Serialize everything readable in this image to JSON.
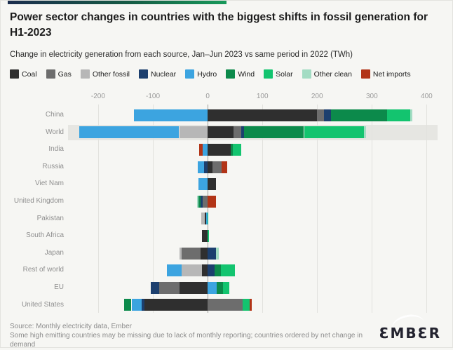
{
  "header": {
    "title": "Power sector changes in countries with the biggest shifts in fossil generation for H1-2023",
    "subtitle": "Change in electricity generation from each source, Jan–Jun 2023 vs same period in 2022 (TWh)"
  },
  "legend": {
    "items": [
      {
        "key": "coal",
        "label": "Coal",
        "color": "#2f2f2f"
      },
      {
        "key": "gas",
        "label": "Gas",
        "color": "#6d6d6d"
      },
      {
        "key": "other_fossil",
        "label": "Other fossil",
        "color": "#b7b7b7"
      },
      {
        "key": "nuclear",
        "label": "Nuclear",
        "color": "#1c3f6e"
      },
      {
        "key": "hydro",
        "label": "Hydro",
        "color": "#3ca4e0"
      },
      {
        "key": "wind",
        "label": "Wind",
        "color": "#0c8a4b"
      },
      {
        "key": "solar",
        "label": "Solar",
        "color": "#13c46f"
      },
      {
        "key": "other_clean",
        "label": "Other clean",
        "color": "#a3dcc3"
      },
      {
        "key": "net_imports",
        "label": "Net imports",
        "color": "#b23417"
      }
    ]
  },
  "chart_data": {
    "type": "bar",
    "orientation": "horizontal",
    "stacked": true,
    "diverging": true,
    "unit": "TWh",
    "title": "Power sector changes in countries with the biggest shifts in fossil generation for H1-2023",
    "axis": {
      "min": -255,
      "max": 420,
      "ticks": [
        -200,
        -100,
        0,
        100,
        200,
        300,
        400
      ],
      "position": "top",
      "grid": true
    },
    "rows": [
      {
        "label": "China",
        "highlight": false,
        "segments": [
          [
            "hydro",
            -135
          ],
          [
            "coal",
            200
          ],
          [
            "gas",
            12
          ],
          [
            "nuclear",
            13
          ],
          [
            "wind",
            103
          ],
          [
            "solar",
            42
          ],
          [
            "other_clean",
            4
          ]
        ]
      },
      {
        "label": "World",
        "highlight": true,
        "segments": [
          [
            "other_fossil",
            -52
          ],
          [
            "hydro",
            -183
          ],
          [
            "coal",
            47
          ],
          [
            "gas",
            14
          ],
          [
            "nuclear",
            6
          ],
          [
            "wind",
            109
          ],
          [
            "solar",
            109
          ],
          [
            "other_clean",
            5
          ]
        ]
      },
      {
        "label": "India",
        "highlight": false,
        "segments": [
          [
            "hydro",
            -9
          ],
          [
            "net_imports",
            -6
          ],
          [
            "coal",
            42
          ],
          [
            "wind",
            4
          ],
          [
            "solar",
            15
          ]
        ]
      },
      {
        "label": "Russia",
        "highlight": false,
        "segments": [
          [
            "nuclear",
            -6
          ],
          [
            "hydro",
            -12
          ],
          [
            "coal",
            9
          ],
          [
            "gas",
            17
          ],
          [
            "net_imports",
            10
          ]
        ]
      },
      {
        "label": "Viet Nam",
        "highlight": false,
        "segments": [
          [
            "hydro",
            -17
          ],
          [
            "coal",
            15
          ]
        ]
      },
      {
        "label": "United Kingdom",
        "highlight": false,
        "segments": [
          [
            "gas",
            -9
          ],
          [
            "nuclear",
            -4
          ],
          [
            "wind",
            -4
          ],
          [
            "other_clean",
            -2
          ],
          [
            "net_imports",
            15
          ]
        ]
      },
      {
        "label": "Pakistan",
        "highlight": false,
        "segments": [
          [
            "hydro",
            -3
          ],
          [
            "coal",
            -2
          ],
          [
            "other_fossil",
            -7
          ],
          [
            "solar",
            1
          ]
        ]
      },
      {
        "label": "South Africa",
        "highlight": false,
        "segments": [
          [
            "coal",
            -10
          ],
          [
            "solar",
            2
          ]
        ]
      },
      {
        "label": "Japan",
        "highlight": false,
        "segments": [
          [
            "coal",
            -13
          ],
          [
            "gas",
            -35
          ],
          [
            "other_fossil",
            -4
          ],
          [
            "nuclear",
            15
          ],
          [
            "other_clean",
            6
          ]
        ]
      },
      {
        "label": "Rest of world",
        "highlight": false,
        "segments": [
          [
            "coal",
            -10
          ],
          [
            "other_fossil",
            -38
          ],
          [
            "hydro",
            -26
          ],
          [
            "nuclear",
            13
          ],
          [
            "wind",
            11
          ],
          [
            "solar",
            26
          ]
        ]
      },
      {
        "label": "EU",
        "highlight": false,
        "segments": [
          [
            "coal",
            -51
          ],
          [
            "gas",
            -38
          ],
          [
            "nuclear",
            -15
          ],
          [
            "hydro",
            17
          ],
          [
            "wind",
            11
          ],
          [
            "solar",
            12
          ]
        ]
      },
      {
        "label": "United States",
        "highlight": false,
        "segments": [
          [
            "coal",
            -115
          ],
          [
            "nuclear",
            -5
          ],
          [
            "hydro",
            -19
          ],
          [
            "wind",
            -14
          ],
          [
            "gas",
            64
          ],
          [
            "solar",
            13
          ],
          [
            "net_imports",
            4
          ]
        ]
      }
    ]
  },
  "footer": {
    "source": "Source: Monthly electricity data, Ember",
    "note": "Some high emitting countries may be missing due to lack of monthly reporting; countries ordered by net change in demand",
    "logo_text": "ƐMBƐR"
  }
}
